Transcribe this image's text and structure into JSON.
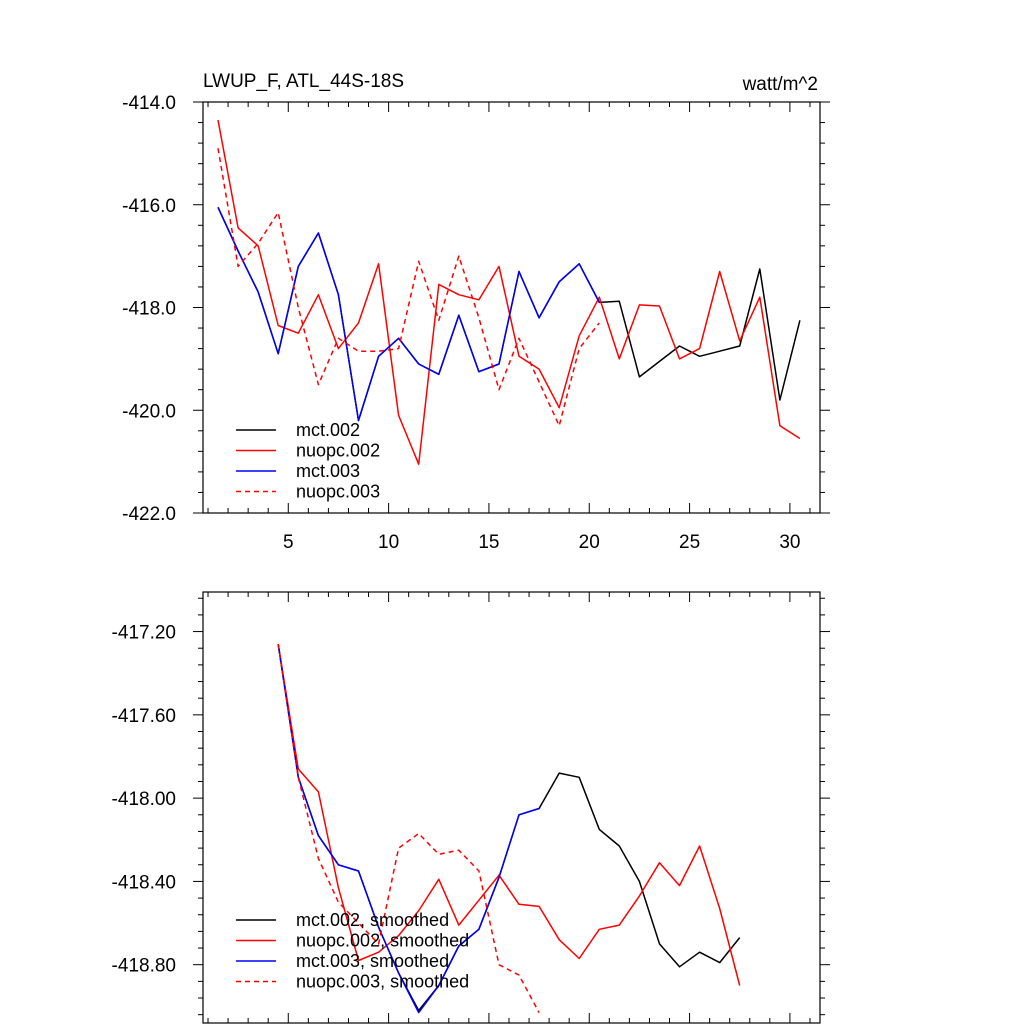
{
  "chart_data": [
    {
      "type": "line",
      "title": "LWUP_F, ATL_44S-18S",
      "units": "watt/m^2",
      "xlabel": "",
      "ylabel": "",
      "xlim": [
        0.75,
        31.5
      ],
      "ylim": [
        -422.0,
        -414.0
      ],
      "xticks": [
        5,
        10,
        15,
        20,
        25,
        30
      ],
      "xtick_labels": [
        "5",
        "10",
        "15",
        "20",
        "25",
        "30"
      ],
      "yticks": [
        -414.0,
        -416.0,
        -418.0,
        -420.0,
        -422.0
      ],
      "ytick_labels": [
        "-414.0",
        "-416.0",
        "-418.0",
        "-420.0",
        "-422.0"
      ],
      "legend_position": "bottom-left",
      "series": [
        {
          "name": "mct.002",
          "color": "#000000",
          "dash": "solid",
          "x": [
            1.5,
            2.5,
            3.5,
            4.5,
            5.5,
            6.5,
            7.5,
            8.5,
            9.5,
            10.5,
            11.5,
            12.5,
            13.5,
            14.5,
            15.5,
            16.5,
            17.5,
            18.5,
            19.5,
            20.5,
            21.5,
            22.5,
            23.5,
            24.5,
            25.5,
            26.5,
            27.5,
            28.5,
            29.5,
            30.5
          ],
          "y": [
            -416.05,
            -416.9,
            -417.7,
            -418.9,
            -417.2,
            -416.55,
            -417.75,
            -420.2,
            -418.95,
            -418.6,
            -419.1,
            -419.3,
            -418.15,
            -419.25,
            -419.1,
            -417.3,
            -418.2,
            -417.5,
            -417.15,
            -417.9,
            -417.88,
            -419.35,
            -419.05,
            -418.75,
            -418.95,
            -418.85,
            -418.75,
            -417.25,
            -419.8,
            -418.25
          ]
        },
        {
          "name": "nuopc.002",
          "color": "#ff0000",
          "dash": "solid",
          "x": [
            1.5,
            2.5,
            3.5,
            4.5,
            5.5,
            6.5,
            7.5,
            8.5,
            9.5,
            10.5,
            11.5,
            12.5,
            13.5,
            14.5,
            15.5,
            16.5,
            17.5,
            18.5,
            19.5,
            20.5,
            21.5,
            22.5,
            23.5,
            24.5,
            25.5,
            26.5,
            27.5,
            28.5,
            29.5,
            30.5
          ],
          "y": [
            -414.35,
            -416.45,
            -416.8,
            -418.35,
            -418.5,
            -417.75,
            -418.8,
            -418.3,
            -417.15,
            -420.1,
            -421.05,
            -417.55,
            -417.75,
            -417.85,
            -417.2,
            -418.95,
            -419.2,
            -419.95,
            -418.55,
            -417.8,
            -419.0,
            -417.95,
            -417.97,
            -419.0,
            -418.8,
            -417.3,
            -418.65,
            -417.8,
            -420.3,
            -420.55
          ]
        },
        {
          "name": "mct.003",
          "color": "#0000ff",
          "dash": "solid",
          "x": [
            1.5,
            2.5,
            3.5,
            4.5,
            5.5,
            6.5,
            7.5,
            8.5,
            9.5,
            10.5,
            11.5,
            12.5,
            13.5,
            14.5,
            15.5,
            16.5,
            17.5,
            18.5,
            19.5,
            20.5
          ],
          "y": [
            -416.05,
            -416.9,
            -417.7,
            -418.9,
            -417.2,
            -416.55,
            -417.75,
            -420.2,
            -418.95,
            -418.6,
            -419.1,
            -419.3,
            -418.15,
            -419.25,
            -419.1,
            -417.3,
            -418.2,
            -417.5,
            -417.15,
            -417.9
          ]
        },
        {
          "name": "nuopc.003",
          "color": "#ff0000",
          "dash": "dashed",
          "x": [
            1.5,
            2.5,
            3.5,
            4.5,
            5.5,
            6.5,
            7.5,
            8.5,
            9.5,
            10.5,
            11.5,
            12.5,
            13.5,
            14.5,
            15.5,
            16.5,
            17.5,
            18.5,
            19.5,
            20.5
          ],
          "y": [
            -414.9,
            -417.2,
            -416.75,
            -416.15,
            -418.0,
            -419.5,
            -418.6,
            -418.85,
            -418.85,
            -418.8,
            -417.1,
            -418.25,
            -417.0,
            -418.2,
            -419.6,
            -418.6,
            -419.45,
            -420.3,
            -418.8,
            -418.3
          ]
        }
      ]
    },
    {
      "type": "line",
      "title": "",
      "xlabel": "",
      "ylabel": "",
      "xlim": [
        0.75,
        31.5
      ],
      "ylim": [
        -419.08,
        -417.01
      ],
      "xticks": [
        5,
        10,
        15,
        20,
        25,
        30
      ],
      "xtick_labels": [],
      "yticks": [
        -417.2,
        -417.6,
        -418.0,
        -418.4,
        -418.8
      ],
      "ytick_labels": [
        "-417.20",
        "-417.60",
        "-418.00",
        "-418.40",
        "-418.80"
      ],
      "legend_position": "bottom-left",
      "series": [
        {
          "name": "mct.002, smoothed",
          "color": "#000000",
          "dash": "solid",
          "x": [
            4.5,
            5.5,
            6.5,
            7.5,
            8.5,
            9.5,
            10.5,
            11.5,
            12.5,
            13.5,
            14.5,
            15.5,
            16.5,
            17.5,
            18.5,
            19.5,
            20.5,
            21.5,
            22.5,
            23.5,
            24.5,
            25.5,
            26.5,
            27.5
          ],
          "y": [
            -417.26,
            -417.9,
            -418.18,
            -418.32,
            -418.35,
            -418.62,
            -418.84,
            -419.02,
            -418.9,
            -418.71,
            -418.63,
            -418.38,
            -418.08,
            -418.05,
            -417.88,
            -417.9,
            -418.15,
            -418.23,
            -418.4,
            -418.7,
            -418.81,
            -418.74,
            -418.79,
            -418.67
          ]
        },
        {
          "name": "nuopc.002, smoothed",
          "color": "#ff0000",
          "dash": "solid",
          "x": [
            4.5,
            5.5,
            6.5,
            7.5,
            8.5,
            9.5,
            10.5,
            11.5,
            12.5,
            13.5,
            14.5,
            15.5,
            16.5,
            17.5,
            18.5,
            19.5,
            20.5,
            21.5,
            22.5,
            23.5,
            24.5,
            25.5,
            26.5,
            27.5
          ],
          "y": [
            -417.26,
            -417.86,
            -417.97,
            -418.43,
            -418.78,
            -418.74,
            -418.66,
            -418.54,
            -418.39,
            -418.61,
            -418.49,
            -418.37,
            -418.51,
            -418.52,
            -418.68,
            -418.77,
            -418.63,
            -418.61,
            -418.47,
            -418.31,
            -418.42,
            -418.23,
            -418.53,
            -418.9
          ]
        },
        {
          "name": "mct.003, smoothed",
          "color": "#0000ff",
          "dash": "solid",
          "x": [
            4.5,
            5.5,
            6.5,
            7.5,
            8.5,
            9.5,
            10.5,
            11.5,
            12.5,
            13.5,
            14.5,
            15.5,
            16.5,
            17.5
          ],
          "y": [
            -417.26,
            -417.9,
            -418.18,
            -418.32,
            -418.35,
            -418.62,
            -418.84,
            -419.03,
            -418.9,
            -418.71,
            -418.63,
            -418.38,
            -418.08,
            -418.05
          ]
        },
        {
          "name": "nuopc.003, smoothed",
          "color": "#ff0000",
          "dash": "dashed",
          "x": [
            4.5,
            5.5,
            6.5,
            7.5,
            8.5,
            9.5,
            10.5,
            11.5,
            12.5,
            13.5,
            14.5,
            15.5,
            16.5,
            17.5
          ],
          "y": [
            -417.26,
            -417.9,
            -418.29,
            -418.5,
            -418.6,
            -418.7,
            -418.24,
            -418.17,
            -418.27,
            -418.25,
            -418.35,
            -418.8,
            -418.85,
            -419.03
          ]
        }
      ]
    }
  ]
}
